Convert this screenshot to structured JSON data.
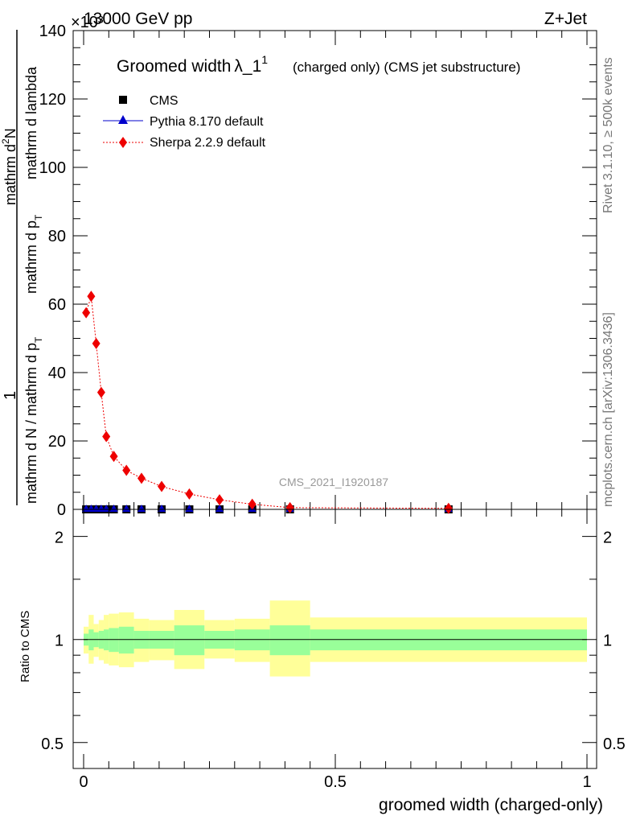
{
  "header": {
    "energy": "13000 GeV pp",
    "process": "Z+Jet",
    "exponent": "×10³"
  },
  "side_labels": {
    "rivet": "Rivet 3.1.10, ≥ 500k events",
    "mcplots": "mcplots.cern.ch [arXiv:1306.3436]"
  },
  "chart_data": [
    {
      "type": "scatter",
      "title": "Groomed width",
      "title_symbol": "λ_1",
      "title_superscript": "1",
      "subtitle": "(charged only) (CMS jet substructure)",
      "watermark": "CMS_2021_I1920187",
      "ylabel": {
        "numerator": "1",
        "denominator_line1": "mathrm d N / mathrm d p",
        "denominator_sub": "T",
        "denominator_line2": "mathrm d p",
        "denominator_line2_sub": "T",
        "denominator_line3": "mathrm d lambda",
        "top_line1": "mathrm d",
        "top_line1_sup": "2",
        "top_line2": "N"
      },
      "ylabel_text": "1 / mathrm d N / mathrm d p_T mathrm d p_T mathrm d lambda mathrm d^2N",
      "xlim": [
        -0.02,
        1.0
      ],
      "ylim": [
        0,
        140
      ],
      "yticks": [
        0,
        20,
        40,
        60,
        80,
        100,
        120,
        140
      ],
      "ytick_labels": [
        "0",
        "20",
        "40",
        "60",
        "80",
        "100",
        "120",
        "140"
      ],
      "legend": [
        {
          "label": "CMS",
          "marker": "square",
          "color": "#000000"
        },
        {
          "label": "Pythia 8.170 default",
          "marker": "triangle",
          "color": "#0000cc"
        },
        {
          "label": "Sherpa 2.2.9 default",
          "marker": "diamond",
          "color": "#ee0000"
        }
      ],
      "legend_position": "top-left",
      "bins": [
        0.0,
        0.01,
        0.02,
        0.03,
        0.04,
        0.05,
        0.07,
        0.1,
        0.13,
        0.18,
        0.24,
        0.3,
        0.37,
        0.45,
        1.0
      ],
      "series": [
        {
          "name": "CMS",
          "x": [
            0.005,
            0.015,
            0.025,
            0.035,
            0.045,
            0.06,
            0.085,
            0.115,
            0.155,
            0.21,
            0.27,
            0.335,
            0.41,
            0.725
          ],
          "values": [
            0,
            0,
            0,
            0,
            0,
            0,
            0,
            0,
            0,
            0,
            0,
            0,
            0,
            0
          ]
        },
        {
          "name": "Pythia 8.170 default",
          "x": [
            0.005,
            0.015,
            0.025,
            0.035,
            0.045,
            0.06,
            0.085,
            0.115,
            0.155,
            0.21,
            0.27,
            0.335,
            0.41,
            0.725
          ],
          "values": [
            0,
            0,
            0,
            0,
            0,
            0,
            0,
            0,
            0,
            0,
            0,
            0,
            0,
            0
          ]
        },
        {
          "name": "Sherpa 2.2.9 default",
          "x": [
            0.005,
            0.015,
            0.025,
            0.035,
            0.045,
            0.06,
            0.085,
            0.115,
            0.155,
            0.21,
            0.27,
            0.335,
            0.41,
            0.725
          ],
          "values": [
            57.5,
            62.3,
            48.5,
            34.2,
            21.3,
            15.5,
            11.4,
            9.1,
            6.7,
            4.5,
            2.8,
            1.5,
            0.5,
            0.3
          ]
        }
      ]
    },
    {
      "type": "area",
      "ylabel": "Ratio to CMS",
      "xlabel": "groomed width (charged-only)",
      "yscale": "log",
      "ylim": [
        0.42,
        2.4
      ],
      "yticks": [
        0.5,
        1,
        2
      ],
      "ytick_labels": [
        "0.5",
        "1",
        "2"
      ],
      "xlim": [
        -0.02,
        1.0
      ],
      "xticks": [
        0,
        0.5,
        1
      ],
      "xtick_labels": [
        "0",
        "0.5",
        "1"
      ],
      "reference_line": 1,
      "bins": [
        0.0,
        0.01,
        0.02,
        0.03,
        0.04,
        0.05,
        0.07,
        0.1,
        0.13,
        0.18,
        0.24,
        0.3,
        0.37,
        0.45,
        1.0
      ],
      "stat_band": {
        "color": "#99ff99",
        "low": [
          0.96,
          0.93,
          0.95,
          0.94,
          0.93,
          0.92,
          0.91,
          0.94,
          0.94,
          0.9,
          0.94,
          0.93,
          0.9,
          0.93
        ],
        "high": [
          1.04,
          1.07,
          1.05,
          1.06,
          1.07,
          1.08,
          1.09,
          1.06,
          1.06,
          1.1,
          1.06,
          1.07,
          1.1,
          1.07
        ]
      },
      "syst_band": {
        "color": "#ffff99",
        "low": [
          0.91,
          0.85,
          0.89,
          0.87,
          0.85,
          0.84,
          0.83,
          0.86,
          0.87,
          0.82,
          0.88,
          0.86,
          0.78,
          0.86
        ],
        "high": [
          1.09,
          1.18,
          1.11,
          1.14,
          1.18,
          1.19,
          1.2,
          1.15,
          1.14,
          1.22,
          1.14,
          1.15,
          1.3,
          1.16
        ]
      }
    }
  ]
}
